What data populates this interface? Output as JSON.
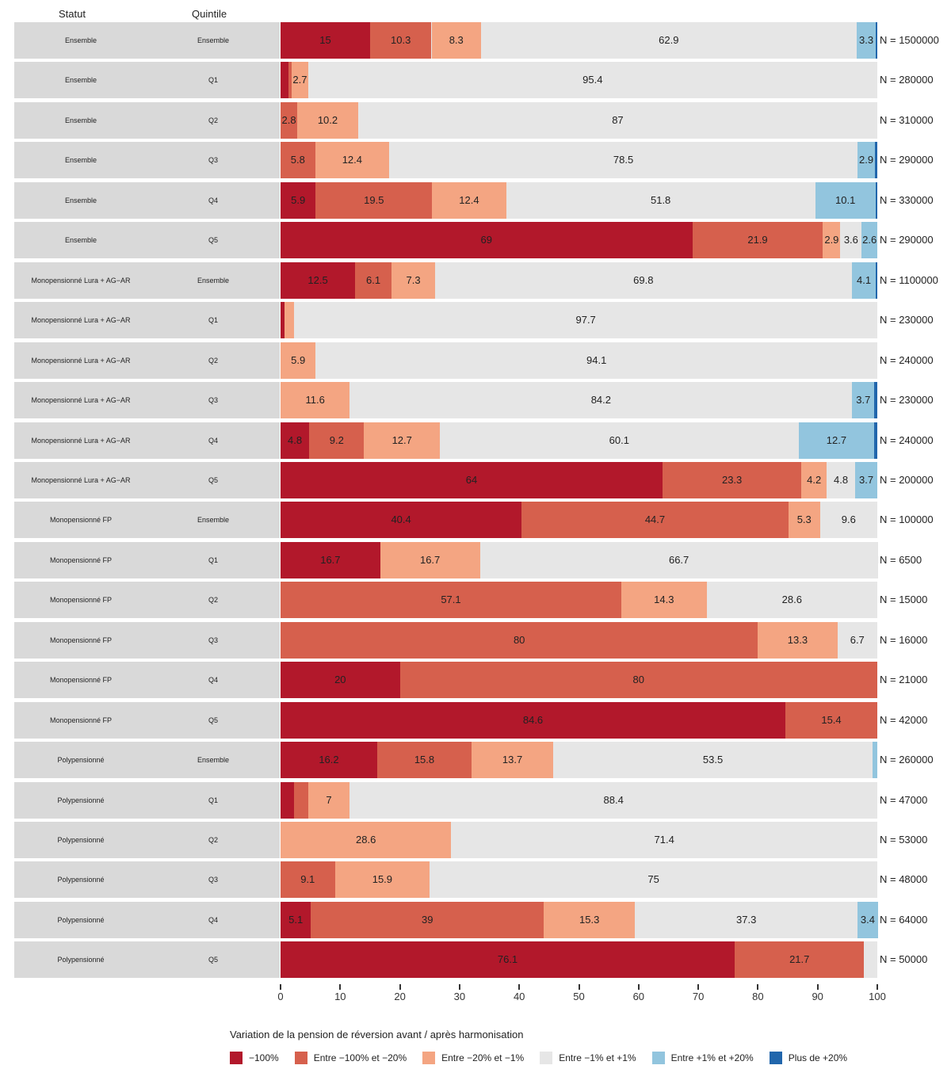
{
  "chart_data": {
    "type": "bar",
    "orientation": "horizontal",
    "stacked": true,
    "title": "",
    "xlabel": "",
    "ylabel": "",
    "xlim": [
      0,
      100
    ],
    "x_ticks": [
      "0",
      "10",
      "20",
      "30",
      "40",
      "50",
      "60",
      "70",
      "80",
      "90",
      "100"
    ],
    "row_headers": {
      "statut": "Statut",
      "quintile": "Quintile"
    },
    "legend": {
      "title": "Variation de la pension de réversion avant / après harmonisation",
      "placement": "bottom"
    },
    "series": [
      {
        "name": "−100%",
        "color": "#b2182b"
      },
      {
        "name": "Entre −100% et −20%",
        "color": "#d6604d"
      },
      {
        "name": "Entre −20% et −1%",
        "color": "#f4a582"
      },
      {
        "name": "Entre −1% et +1%",
        "color": "#e6e6e6"
      },
      {
        "name": "Entre +1% et +20%",
        "color": "#92c5de"
      },
      {
        "name": "Plus de +20%",
        "color": "#2166ac"
      }
    ],
    "rows": [
      {
        "statut": "Ensemble",
        "quintile": "Ensemble",
        "n": "N = 1500000",
        "values": [
          15,
          10.3,
          8.3,
          62.9,
          3.3,
          0.2
        ],
        "labels": [
          "15",
          "10.3",
          "8.3",
          "62.9",
          "3.3",
          ""
        ]
      },
      {
        "statut": "Ensemble",
        "quintile": "Q1",
        "n": "N = 280000",
        "values": [
          1.3,
          0.6,
          2.7,
          95.4,
          0,
          0
        ],
        "labels": [
          "",
          "",
          "2.7",
          "95.4",
          "",
          ""
        ]
      },
      {
        "statut": "Ensemble",
        "quintile": "Q2",
        "n": "N = 310000",
        "values": [
          0,
          2.8,
          10.2,
          87,
          0,
          0
        ],
        "labels": [
          "",
          "2.8",
          "10.2",
          "87",
          "",
          ""
        ]
      },
      {
        "statut": "Ensemble",
        "quintile": "Q3",
        "n": "N = 290000",
        "values": [
          0,
          5.8,
          12.4,
          78.5,
          2.9,
          0.4
        ],
        "labels": [
          "",
          "5.8",
          "12.4",
          "78.5",
          "2.9",
          ""
        ]
      },
      {
        "statut": "Ensemble",
        "quintile": "Q4",
        "n": "N = 330000",
        "values": [
          5.9,
          19.5,
          12.4,
          51.8,
          10.1,
          0.3
        ],
        "labels": [
          "5.9",
          "19.5",
          "12.4",
          "51.8",
          "10.1",
          ""
        ]
      },
      {
        "statut": "Ensemble",
        "quintile": "Q5",
        "n": "N = 290000",
        "values": [
          69,
          21.9,
          2.9,
          3.6,
          2.6,
          0
        ],
        "labels": [
          "69",
          "21.9",
          "2.9",
          "3.6",
          "2.6",
          ""
        ]
      },
      {
        "statut": "Monopensionné Lura + AG−AR",
        "quintile": "Ensemble",
        "n": "N = 1100000",
        "values": [
          12.5,
          6.1,
          7.3,
          69.8,
          4.1,
          0.2
        ],
        "labels": [
          "12.5",
          "6.1",
          "7.3",
          "69.8",
          "4.1",
          ""
        ]
      },
      {
        "statut": "Monopensionné Lura + AG−AR",
        "quintile": "Q1",
        "n": "N = 230000",
        "values": [
          0.6,
          0,
          1.7,
          97.7,
          0,
          0
        ],
        "labels": [
          "",
          "",
          "",
          "97.7",
          "",
          ""
        ]
      },
      {
        "statut": "Monopensionné Lura + AG−AR",
        "quintile": "Q2",
        "n": "N = 240000",
        "values": [
          0,
          0,
          5.9,
          94.1,
          0,
          0
        ],
        "labels": [
          "",
          "",
          "5.9",
          "94.1",
          "",
          ""
        ]
      },
      {
        "statut": "Monopensionné Lura + AG−AR",
        "quintile": "Q3",
        "n": "N = 230000",
        "values": [
          0,
          0,
          11.6,
          84.2,
          3.7,
          0.5
        ],
        "labels": [
          "",
          "",
          "11.6",
          "84.2",
          "3.7",
          ""
        ]
      },
      {
        "statut": "Monopensionné Lura + AG−AR",
        "quintile": "Q4",
        "n": "N = 240000",
        "values": [
          4.8,
          9.2,
          12.7,
          60.1,
          12.7,
          0.5
        ],
        "labels": [
          "4.8",
          "9.2",
          "12.7",
          "60.1",
          "12.7",
          ""
        ]
      },
      {
        "statut": "Monopensionné Lura + AG−AR",
        "quintile": "Q5",
        "n": "N = 200000",
        "values": [
          64,
          23.3,
          4.2,
          4.8,
          3.7,
          0
        ],
        "labels": [
          "64",
          "23.3",
          "4.2",
          "4.8",
          "3.7",
          ""
        ]
      },
      {
        "statut": "Monopensionné FP",
        "quintile": "Ensemble",
        "n": "N = 100000",
        "values": [
          40.4,
          44.7,
          5.3,
          9.6,
          0,
          0
        ],
        "labels": [
          "40.4",
          "44.7",
          "5.3",
          "9.6",
          "",
          ""
        ]
      },
      {
        "statut": "Monopensionné FP",
        "quintile": "Q1",
        "n": "N = 6500",
        "values": [
          16.7,
          0,
          16.7,
          66.7,
          0,
          0
        ],
        "labels": [
          "16.7",
          "",
          "16.7",
          "66.7",
          "",
          ""
        ]
      },
      {
        "statut": "Monopensionné FP",
        "quintile": "Q2",
        "n": "N = 15000",
        "values": [
          0,
          57.1,
          14.3,
          28.6,
          0,
          0
        ],
        "labels": [
          "",
          "57.1",
          "14.3",
          "28.6",
          "",
          ""
        ]
      },
      {
        "statut": "Monopensionné FP",
        "quintile": "Q3",
        "n": "N = 16000",
        "values": [
          0,
          80,
          13.3,
          6.7,
          0,
          0
        ],
        "labels": [
          "",
          "80",
          "13.3",
          "6.7",
          "",
          ""
        ]
      },
      {
        "statut": "Monopensionné FP",
        "quintile": "Q4",
        "n": "N = 21000",
        "values": [
          20,
          80,
          0,
          0,
          0,
          0
        ],
        "labels": [
          "20",
          "80",
          "",
          "",
          "",
          ""
        ]
      },
      {
        "statut": "Monopensionné FP",
        "quintile": "Q5",
        "n": "N = 42000",
        "values": [
          84.6,
          15.4,
          0,
          0,
          0,
          0
        ],
        "labels": [
          "84.6",
          "15.4",
          "",
          "",
          "",
          ""
        ]
      },
      {
        "statut": "Polypensionné",
        "quintile": "Ensemble",
        "n": "N = 260000",
        "values": [
          16.2,
          15.8,
          13.7,
          53.5,
          0.8,
          0
        ],
        "labels": [
          "16.2",
          "15.8",
          "13.7",
          "53.5",
          "",
          ""
        ]
      },
      {
        "statut": "Polypensionné",
        "quintile": "Q1",
        "n": "N = 47000",
        "values": [
          2.3,
          2.3,
          7,
          88.4,
          0,
          0
        ],
        "labels": [
          "",
          "",
          "7",
          "88.4",
          "",
          ""
        ]
      },
      {
        "statut": "Polypensionné",
        "quintile": "Q2",
        "n": "N = 53000",
        "values": [
          0,
          0,
          28.6,
          71.4,
          0,
          0
        ],
        "labels": [
          "",
          "",
          "28.6",
          "71.4",
          "",
          ""
        ]
      },
      {
        "statut": "Polypensionné",
        "quintile": "Q3",
        "n": "N = 48000",
        "values": [
          0,
          9.1,
          15.9,
          75,
          0,
          0
        ],
        "labels": [
          "",
          "9.1",
          "15.9",
          "75",
          "",
          ""
        ]
      },
      {
        "statut": "Polypensionné",
        "quintile": "Q4",
        "n": "N = 64000",
        "values": [
          5.1,
          39,
          15.3,
          37.3,
          3.4,
          0
        ],
        "labels": [
          "5.1",
          "39",
          "15.3",
          "37.3",
          "3.4",
          ""
        ]
      },
      {
        "statut": "Polypensionné",
        "quintile": "Q5",
        "n": "N = 50000",
        "values": [
          76.1,
          21.7,
          0,
          2.2,
          0,
          0
        ],
        "labels": [
          "76.1",
          "21.7",
          "",
          "",
          "",
          ""
        ]
      }
    ]
  }
}
